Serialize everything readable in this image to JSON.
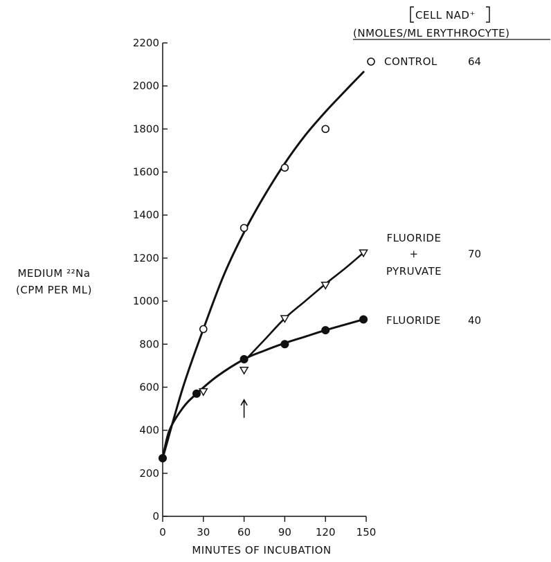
{
  "chart_data": {
    "type": "line",
    "xlabel": "MINUTES OF INCUBATION",
    "ylabel_line1": "MEDIUM ²²Na",
    "ylabel_line2": "(CPM PER ML)",
    "xlim": [
      0,
      150
    ],
    "ylim": [
      0,
      2200
    ],
    "xticks": [
      0,
      30,
      60,
      90,
      120,
      150
    ],
    "yticks": [
      0,
      200,
      400,
      600,
      800,
      1000,
      1200,
      1400,
      1600,
      1800,
      2000,
      2200
    ],
    "grid": false,
    "legend_header": {
      "line1": "CELL NAD⁺",
      "line2": "(NMOLES/ML ERYTHROCYTE)"
    },
    "series": [
      {
        "name": "CONTROL",
        "nad": "64",
        "marker": "open-circle",
        "points": [
          [
            0,
            270
          ],
          [
            30,
            870
          ],
          [
            60,
            1340
          ],
          [
            90,
            1620
          ],
          [
            120,
            1800
          ]
        ],
        "curve": [
          [
            0,
            270
          ],
          [
            15,
            600
          ],
          [
            30,
            870
          ],
          [
            45,
            1120
          ],
          [
            60,
            1320
          ],
          [
            75,
            1490
          ],
          [
            90,
            1640
          ],
          [
            105,
            1770
          ],
          [
            120,
            1880
          ],
          [
            135,
            1980
          ],
          [
            148,
            2065
          ]
        ]
      },
      {
        "name_line1": "FLUORIDE",
        "name_line2": "+",
        "name_line3": "PYRUVATE",
        "nad": "70",
        "marker": "open-triangle",
        "points": [
          [
            30,
            580
          ],
          [
            60,
            680
          ],
          [
            90,
            920
          ],
          [
            120,
            1075
          ],
          [
            148,
            1225
          ]
        ],
        "curve": [
          [
            60,
            720
          ],
          [
            75,
            820
          ],
          [
            90,
            920
          ],
          [
            105,
            1000
          ],
          [
            120,
            1080
          ],
          [
            135,
            1155
          ],
          [
            148,
            1225
          ]
        ]
      },
      {
        "name": "FLUORIDE",
        "nad": "40",
        "marker": "filled-circle",
        "points": [
          [
            0,
            270
          ],
          [
            25,
            570
          ],
          [
            60,
            730
          ],
          [
            90,
            800
          ],
          [
            120,
            865
          ],
          [
            148,
            915
          ]
        ],
        "curve": [
          [
            0,
            270
          ],
          [
            5,
            400
          ],
          [
            15,
            505
          ],
          [
            25,
            570
          ],
          [
            40,
            650
          ],
          [
            60,
            730
          ],
          [
            75,
            770
          ],
          [
            90,
            805
          ],
          [
            105,
            835
          ],
          [
            120,
            865
          ],
          [
            135,
            892
          ],
          [
            148,
            915
          ]
        ]
      }
    ],
    "annotations": [
      {
        "type": "arrow-up",
        "x": 60,
        "y": 580
      }
    ]
  }
}
